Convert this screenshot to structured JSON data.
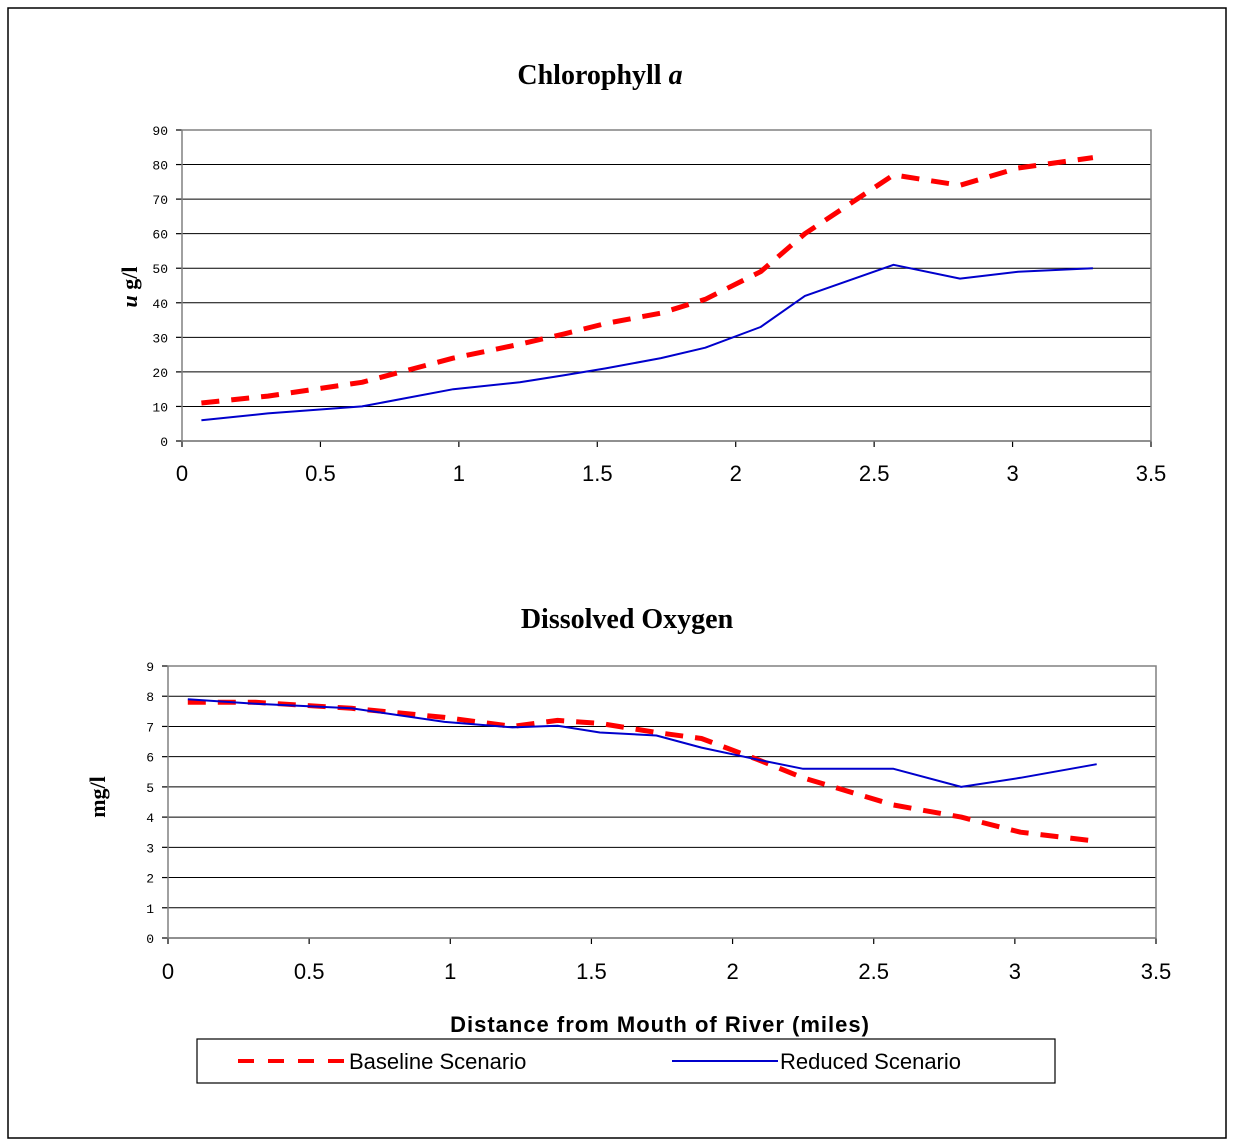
{
  "chart_data": [
    {
      "type": "line",
      "title": "Chlorophyll",
      "title_italic": "a",
      "ylabel_italic": "u",
      "ylabel": " g/l",
      "xlabel": "",
      "ylim": [
        0,
        90
      ],
      "yticks": [
        0,
        10,
        20,
        30,
        40,
        50,
        60,
        70,
        80,
        90
      ],
      "xlim": [
        0,
        3.5
      ],
      "xticks": [
        "0",
        "0.5",
        "1",
        "1.5",
        "2",
        "2.5",
        "3",
        "3.5"
      ],
      "grid": true,
      "series": [
        {
          "name": "Baseline Scenario",
          "color": "#ff0000",
          "style": "dashed",
          "x": [
            0.07,
            0.31,
            0.65,
            0.98,
            1.22,
            1.38,
            1.53,
            1.73,
            1.89,
            2.09,
            2.25,
            2.57,
            2.81,
            3.02,
            3.29
          ],
          "y": [
            11,
            13,
            17,
            24,
            28,
            31,
            34,
            37,
            41,
            49,
            60,
            77,
            74,
            79,
            82
          ]
        },
        {
          "name": "Reduced Scenario",
          "color": "#0000cc",
          "style": "solid",
          "x": [
            0.07,
            0.31,
            0.65,
            0.98,
            1.22,
            1.38,
            1.53,
            1.73,
            1.89,
            2.09,
            2.25,
            2.57,
            2.81,
            3.02,
            3.29
          ],
          "y": [
            6,
            8,
            10,
            15,
            17,
            19,
            21,
            24,
            27,
            33,
            42,
            51,
            47,
            49,
            50
          ]
        }
      ]
    },
    {
      "type": "line",
      "title": "Dissolved Oxygen",
      "ylabel": "mg/l",
      "xlabel": "Distance from Mouth of River (miles)",
      "ylim": [
        0,
        9
      ],
      "yticks": [
        0,
        1,
        2,
        3,
        4,
        5,
        6,
        7,
        8,
        9
      ],
      "xlim": [
        0,
        3.5
      ],
      "xticks": [
        "0",
        "0.5",
        "1",
        "1.5",
        "2",
        "2.5",
        "3",
        "3.5"
      ],
      "grid": true,
      "series": [
        {
          "name": "Baseline Scenario",
          "color": "#ff0000",
          "style": "dashed",
          "x": [
            0.07,
            0.31,
            0.65,
            0.98,
            1.22,
            1.38,
            1.53,
            1.73,
            1.89,
            2.09,
            2.25,
            2.57,
            2.81,
            3.02,
            3.29
          ],
          "y": [
            7.8,
            7.8,
            7.6,
            7.3,
            7.0,
            7.2,
            7.1,
            6.8,
            6.6,
            5.9,
            5.3,
            4.4,
            4.0,
            3.5,
            3.2
          ]
        },
        {
          "name": "Reduced Scenario",
          "color": "#0000cc",
          "style": "solid",
          "x": [
            0.07,
            0.31,
            0.65,
            0.98,
            1.22,
            1.38,
            1.53,
            1.73,
            1.89,
            2.09,
            2.25,
            2.57,
            2.81,
            3.02,
            3.29
          ],
          "y": [
            7.9,
            7.75,
            7.6,
            7.15,
            6.97,
            7.02,
            6.8,
            6.7,
            6.3,
            5.9,
            5.6,
            5.6,
            5.0,
            5.3,
            5.75
          ]
        }
      ]
    }
  ],
  "legend": {
    "position": "bottom",
    "items": [
      "Baseline Scenario",
      "Reduced Scenario"
    ]
  }
}
